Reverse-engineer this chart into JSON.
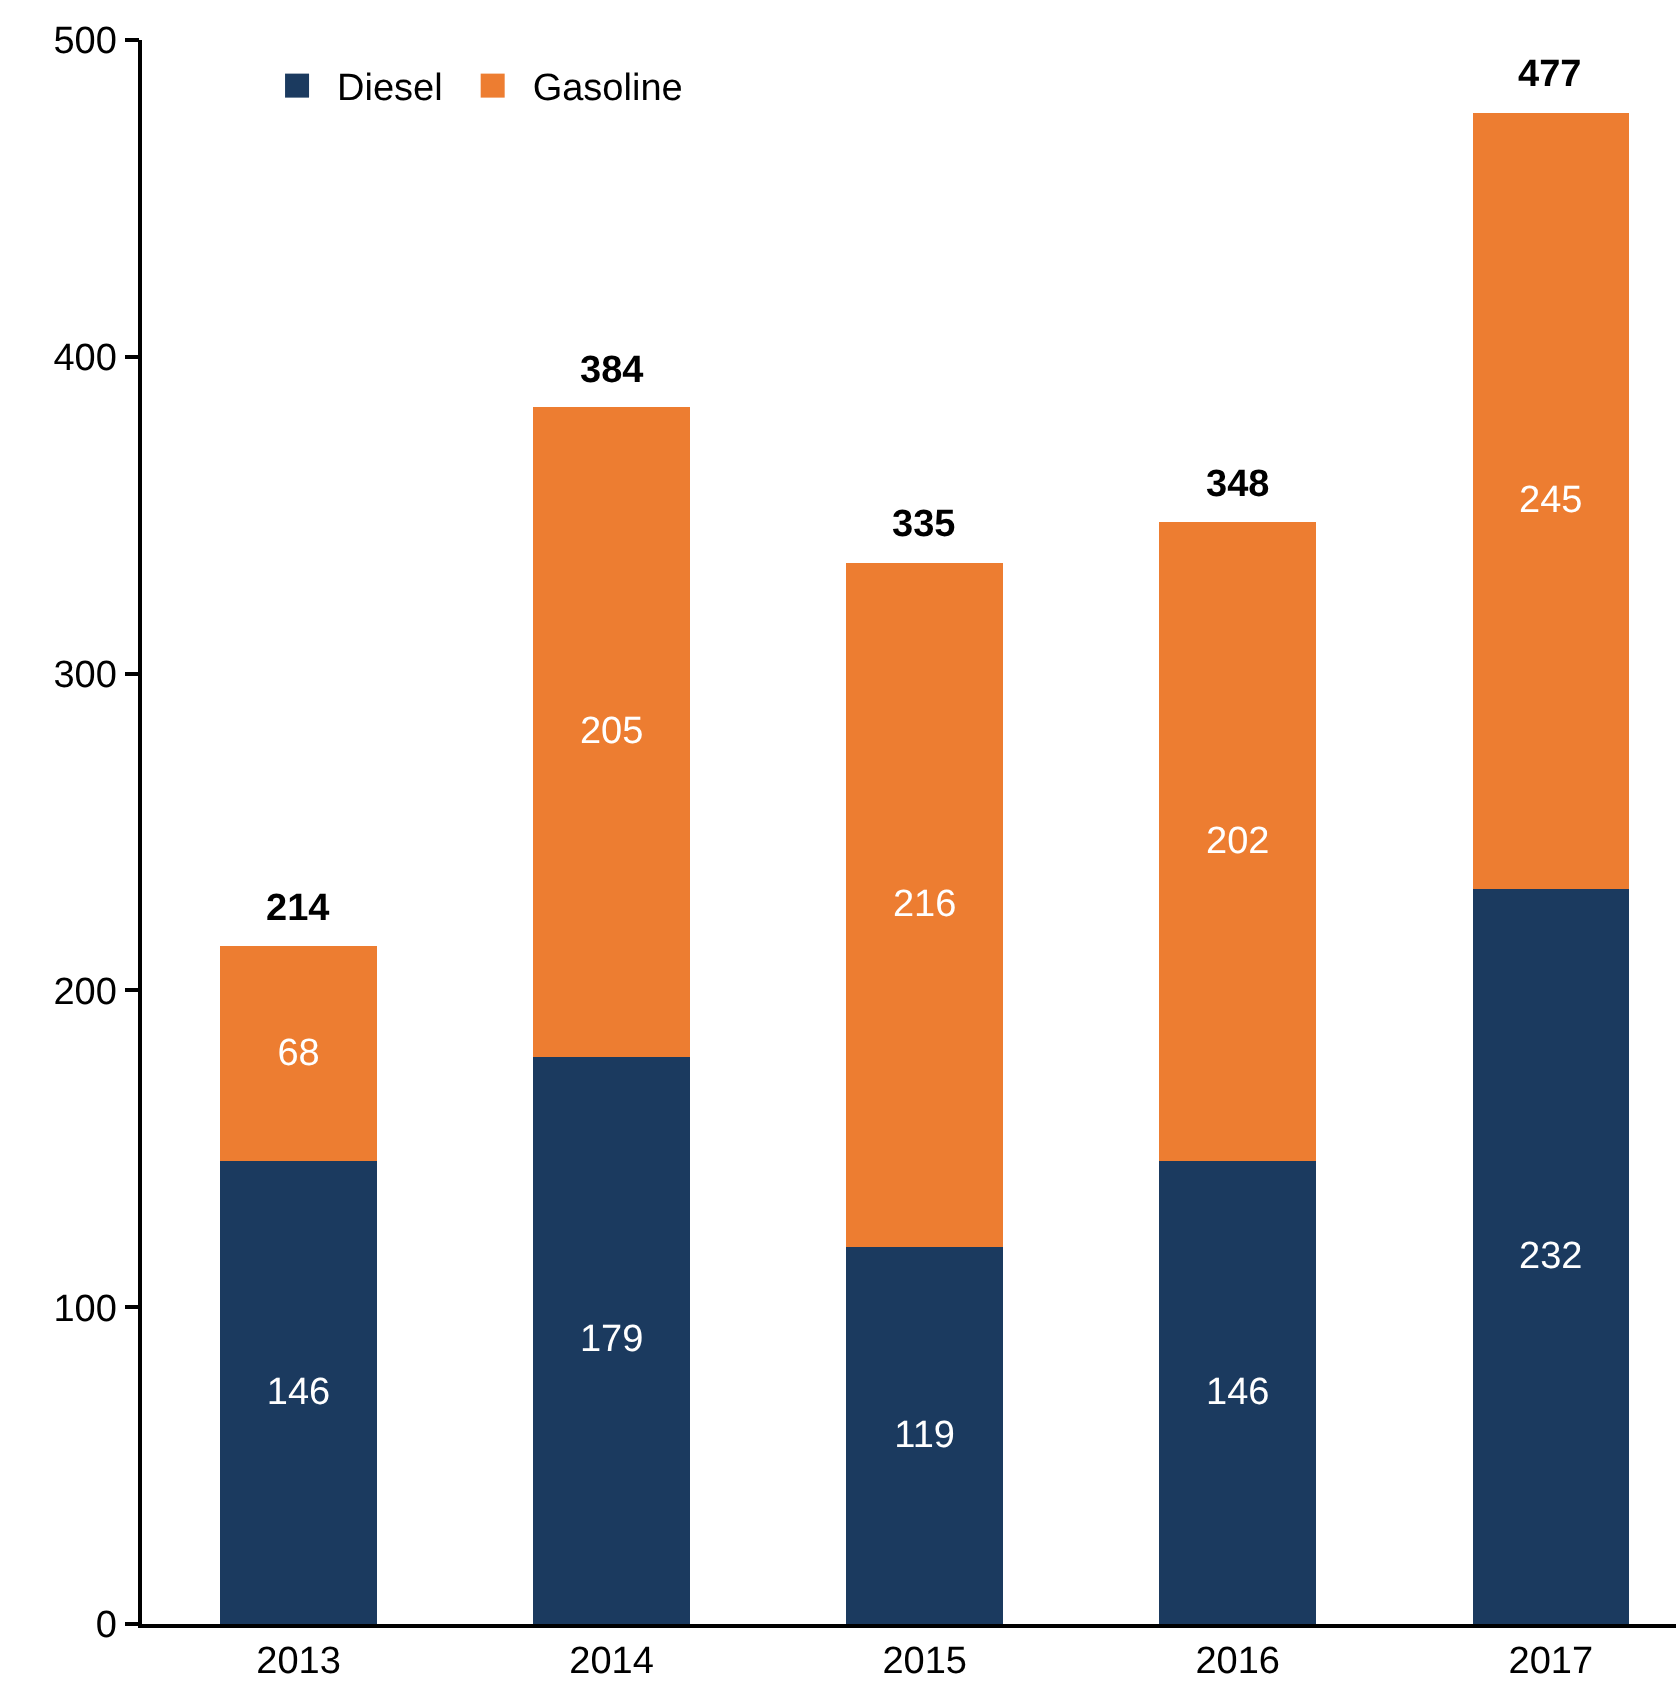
{
  "chart_data": {
    "type": "bar",
    "stacked": true,
    "categories": [
      "2013",
      "2014",
      "2015",
      "2016",
      "2017"
    ],
    "series": [
      {
        "name": "Diesel",
        "color": "#1b3a5f",
        "values": [
          146,
          179,
          119,
          146,
          232
        ]
      },
      {
        "name": "Gasoline",
        "color": "#ed7d31",
        "values": [
          68,
          205,
          216,
          202,
          245
        ]
      }
    ],
    "totals": [
      "214",
      "384",
      "335",
      "348",
      "477"
    ],
    "data_labels": true,
    "ylim": [
      0,
      500
    ],
    "yticks": [
      0,
      100,
      200,
      300,
      400,
      500
    ],
    "grid": false,
    "legend": "top left"
  }
}
